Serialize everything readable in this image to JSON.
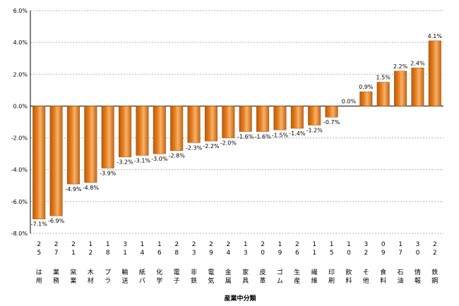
{
  "chart_data": {
    "type": "bar",
    "title": "",
    "xlabel": "産業中分類",
    "ylabel": "",
    "ylim": [
      -8,
      6
    ],
    "yticks": [
      6,
      4,
      2,
      0,
      -2,
      -4,
      -6,
      -8
    ],
    "ytick_labels": [
      "6.0%",
      "4.0%",
      "2.0%",
      "0.0%",
      "-2.0%",
      "-4.0%",
      "-6.0%",
      "-8.0%"
    ],
    "grid": true,
    "legend": "none",
    "bar_color": "#E87F1E",
    "categories": [
      {
        "code": [
          "2",
          "5"
        ],
        "name": [
          "は",
          "用"
        ]
      },
      {
        "code": [
          "2",
          "7"
        ],
        "name": [
          "業",
          "務"
        ]
      },
      {
        "code": [
          "2",
          "1"
        ],
        "name": [
          "窯",
          "業"
        ]
      },
      {
        "code": [
          "1",
          "2"
        ],
        "name": [
          "木",
          "材"
        ]
      },
      {
        "code": [
          "1",
          "8"
        ],
        "name": [
          "プ",
          "ラ"
        ]
      },
      {
        "code": [
          "3",
          "1"
        ],
        "name": [
          "輸",
          "送"
        ]
      },
      {
        "code": [
          "1",
          "4"
        ],
        "name": [
          "紙",
          "パ"
        ]
      },
      {
        "code": [
          "1",
          "6"
        ],
        "name": [
          "化",
          "学"
        ]
      },
      {
        "code": [
          "2",
          "8"
        ],
        "name": [
          "電",
          "子"
        ]
      },
      {
        "code": [
          "2",
          "3"
        ],
        "name": [
          "非",
          "鉄"
        ]
      },
      {
        "code": [
          "2",
          "9"
        ],
        "name": [
          "電",
          "気"
        ]
      },
      {
        "code": [
          "2",
          "4"
        ],
        "name": [
          "金",
          "属"
        ]
      },
      {
        "code": [
          "1",
          "3"
        ],
        "name": [
          "家",
          "具"
        ]
      },
      {
        "code": [
          "2",
          "0"
        ],
        "name": [
          "皮",
          "革"
        ]
      },
      {
        "code": [
          "1",
          "9"
        ],
        "name": [
          "ゴ",
          "ム"
        ]
      },
      {
        "code": [
          "2",
          "6"
        ],
        "name": [
          "生",
          "産"
        ]
      },
      {
        "code": [
          "1",
          "1"
        ],
        "name": [
          "繊",
          "維"
        ]
      },
      {
        "code": [
          "1",
          "5"
        ],
        "name": [
          "印",
          "刷"
        ]
      },
      {
        "code": [
          "1",
          "0"
        ],
        "name": [
          "飲",
          "料"
        ]
      },
      {
        "code": [
          "3",
          "2"
        ],
        "name": [
          "そ",
          "他"
        ]
      },
      {
        "code": [
          "0",
          "9"
        ],
        "name": [
          "食",
          "料"
        ]
      },
      {
        "code": [
          "1",
          "7"
        ],
        "name": [
          "石",
          "油"
        ]
      },
      {
        "code": [
          "3",
          "0"
        ],
        "name": [
          "情",
          "報"
        ]
      },
      {
        "code": [
          "2",
          "2"
        ],
        "name": [
          "鉄",
          "鋼"
        ]
      }
    ],
    "values": [
      -7.1,
      -6.9,
      -4.9,
      -4.8,
      -3.9,
      -3.2,
      -3.1,
      -3.0,
      -2.8,
      -2.3,
      -2.2,
      -2.0,
      -1.6,
      -1.6,
      -1.5,
      -1.4,
      -1.2,
      -0.7,
      0.0,
      0.9,
      1.5,
      2.2,
      2.4,
      4.1
    ],
    "value_labels": [
      "-7.1%",
      "-6.9%",
      "-4.9%",
      "-4.8%",
      "-3.9%",
      "-3.2%",
      "-3.1%",
      "-3.0%",
      "-2.8%",
      "-2.3%",
      "-2.2%",
      "-2.0%",
      "-1.6%",
      "-1.6%",
      "-1.5%",
      "-1.4%",
      "-1.2%",
      "-0.7%",
      "0.0%",
      "0.9%",
      "1.5%",
      "2.2%",
      "2.4%",
      "4.1%"
    ]
  }
}
